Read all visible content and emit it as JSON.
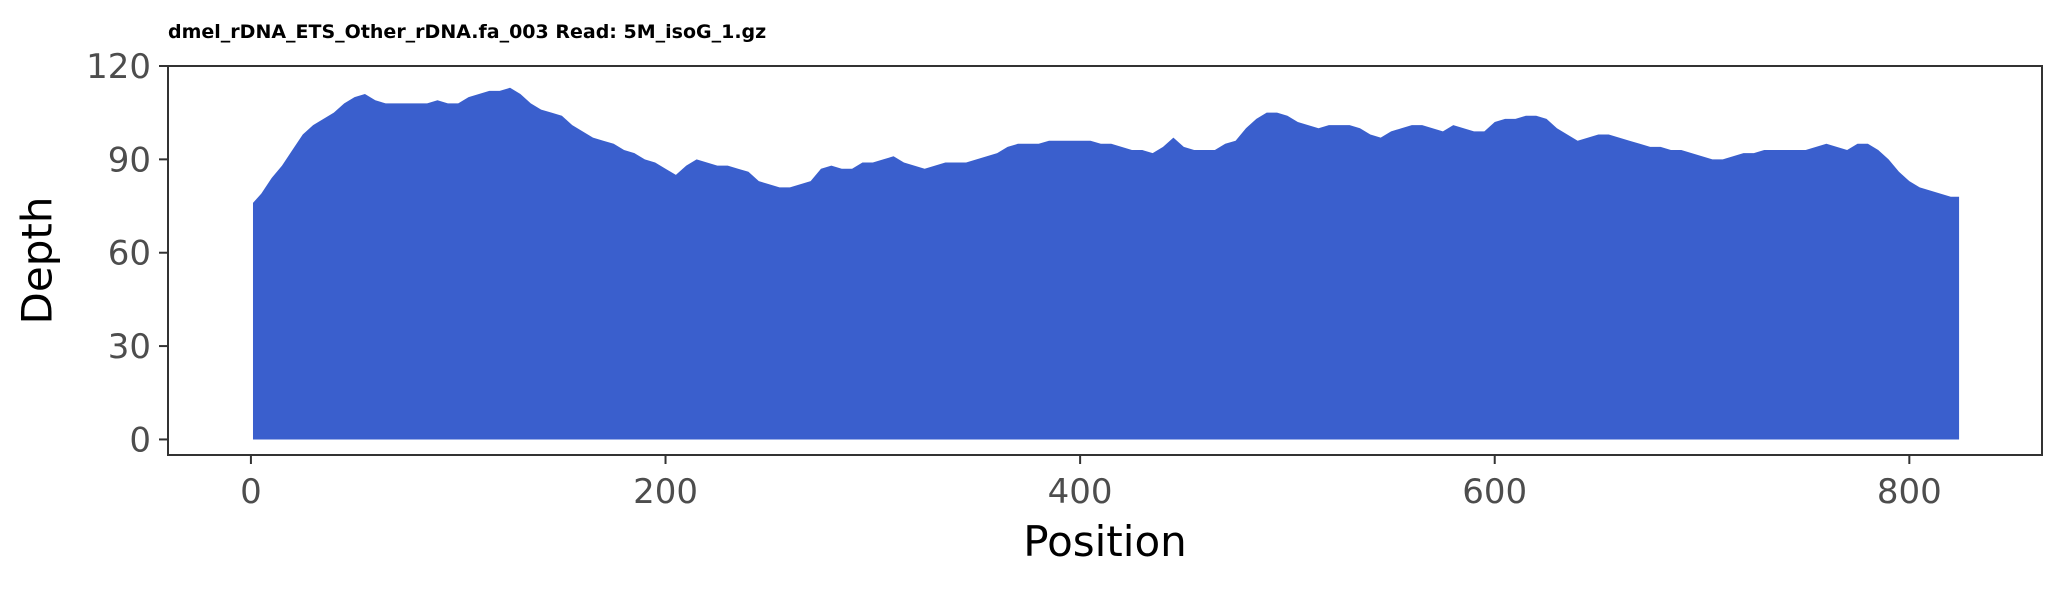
{
  "chart_data": {
    "type": "area",
    "title": "dmel_rDNA_ETS_Other_rDNA.fa_003 Read: 5M_isoG_1.gz",
    "xlabel": "Position",
    "ylabel": "Depth",
    "xlim": [
      -40,
      864
    ],
    "ylim": [
      -5,
      120
    ],
    "x_ticks": [
      0,
      200,
      400,
      600,
      800
    ],
    "y_ticks": [
      0,
      30,
      60,
      90,
      120
    ],
    "grid": false,
    "legend": "none",
    "colors": {
      "fill": "#3a5fcd",
      "panel_border": "#333333",
      "tick_text": "#4d4d4d",
      "background": "#ffffff"
    },
    "series": [
      {
        "x": [
          1,
          5,
          10,
          15,
          20,
          25,
          30,
          35,
          40,
          45,
          50,
          55,
          60,
          65,
          70,
          75,
          80,
          85,
          90,
          95,
          100,
          105,
          110,
          115,
          120,
          125,
          130,
          135,
          140,
          145,
          150,
          155,
          160,
          165,
          170,
          175,
          180,
          185,
          190,
          195,
          200,
          205,
          210,
          215,
          220,
          225,
          230,
          235,
          240,
          245,
          250,
          255,
          260,
          265,
          270,
          275,
          280,
          285,
          290,
          295,
          300,
          305,
          310,
          315,
          320,
          325,
          330,
          335,
          340,
          345,
          350,
          355,
          360,
          365,
          370,
          375,
          380,
          385,
          390,
          395,
          400,
          405,
          410,
          415,
          420,
          425,
          430,
          435,
          440,
          445,
          450,
          455,
          460,
          465,
          470,
          475,
          480,
          485,
          490,
          495,
          500,
          505,
          510,
          515,
          520,
          525,
          530,
          535,
          540,
          545,
          550,
          555,
          560,
          565,
          570,
          575,
          580,
          585,
          590,
          595,
          600,
          605,
          610,
          615,
          620,
          625,
          630,
          635,
          640,
          645,
          650,
          655,
          660,
          665,
          670,
          675,
          680,
          685,
          690,
          695,
          700,
          705,
          710,
          715,
          720,
          725,
          730,
          735,
          740,
          745,
          750,
          755,
          760,
          765,
          770,
          775,
          780,
          785,
          790,
          795,
          800,
          805,
          810,
          815,
          820,
          824
        ],
        "y": [
          76,
          79,
          84,
          88,
          93,
          98,
          101,
          103,
          105,
          108,
          110,
          111,
          109,
          108,
          108,
          108,
          108,
          108,
          109,
          108,
          108,
          110,
          111,
          112,
          112,
          113,
          111,
          108,
          106,
          105,
          104,
          101,
          99,
          97,
          96,
          95,
          93,
          92,
          90,
          89,
          87,
          85,
          88,
          90,
          89,
          88,
          88,
          87,
          86,
          83,
          82,
          81,
          81,
          82,
          83,
          87,
          88,
          87,
          87,
          89,
          89,
          90,
          91,
          89,
          88,
          87,
          88,
          89,
          89,
          89,
          90,
          91,
          92,
          94,
          95,
          95,
          95,
          96,
          96,
          96,
          96,
          96,
          95,
          95,
          94,
          93,
          93,
          92,
          94,
          97,
          94,
          93,
          93,
          93,
          95,
          96,
          100,
          103,
          105,
          105,
          104,
          102,
          101,
          100,
          101,
          101,
          101,
          100,
          98,
          97,
          99,
          100,
          101,
          101,
          100,
          99,
          101,
          100,
          99,
          99,
          102,
          103,
          103,
          104,
          104,
          103,
          100,
          98,
          96,
          97,
          98,
          98,
          97,
          96,
          95,
          94,
          94,
          93,
          93,
          92,
          91,
          90,
          90,
          91,
          92,
          92,
          93,
          93,
          93,
          93,
          93,
          94,
          95,
          94,
          93,
          95,
          95,
          93,
          90,
          86,
          83,
          81,
          80,
          79,
          78,
          78
        ]
      }
    ]
  }
}
